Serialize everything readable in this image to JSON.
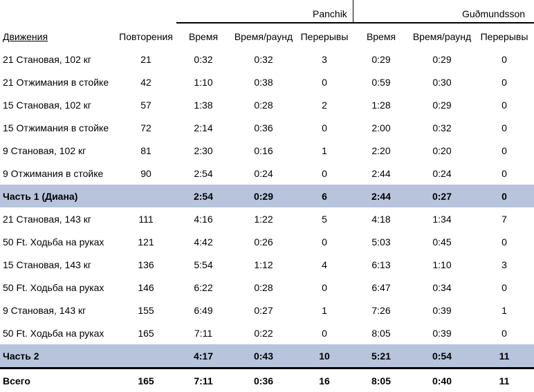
{
  "athletes": [
    "Panchik",
    "Guðmundsson"
  ],
  "columns": [
    "Движения",
    "Повторения",
    "Время",
    "Время/раунд",
    "Перерывы",
    "Время",
    "Время/раунд",
    "Перерывы"
  ],
  "rows": [
    {
      "type": "data",
      "cells": [
        "21 Становая, 102 кг",
        "21",
        "0:32",
        "0:32",
        "3",
        "0:29",
        "0:29",
        "0"
      ]
    },
    {
      "type": "data",
      "cells": [
        "21 Отжимания в стойке",
        "42",
        "1:10",
        "0:38",
        "0",
        "0:59",
        "0:30",
        "0"
      ]
    },
    {
      "type": "data",
      "cells": [
        "15 Становая, 102 кг",
        "57",
        "1:38",
        "0:28",
        "2",
        "1:28",
        "0:29",
        "0"
      ]
    },
    {
      "type": "data",
      "cells": [
        "15 Отжимания в стойке",
        "72",
        "2:14",
        "0:36",
        "0",
        "2:00",
        "0:32",
        "0"
      ]
    },
    {
      "type": "data",
      "cells": [
        "9 Становая, 102 кг",
        "81",
        "2:30",
        "0:16",
        "1",
        "2:20",
        "0:20",
        "0"
      ]
    },
    {
      "type": "data",
      "cells": [
        "9 Отжимания в стойке",
        "90",
        "2:54",
        "0:24",
        "0",
        "2:44",
        "0:24",
        "0"
      ]
    },
    {
      "type": "subtotal",
      "cells": [
        "Часть 1 (Диана)",
        "",
        "2:54",
        "0:29",
        "6",
        "2:44",
        "0:27",
        "0"
      ]
    },
    {
      "type": "data",
      "cells": [
        "21 Становая, 143 кг",
        "111",
        "4:16",
        "1:22",
        "5",
        "4:18",
        "1:34",
        "7"
      ]
    },
    {
      "type": "data",
      "cells": [
        "50 Ft. Ходьба на руках",
        "121",
        "4:42",
        "0:26",
        "0",
        "5:03",
        "0:45",
        "0"
      ]
    },
    {
      "type": "data",
      "cells": [
        "15 Становая, 143 кг",
        "136",
        "5:54",
        "1:12",
        "4",
        "6:13",
        "1:10",
        "3"
      ]
    },
    {
      "type": "data",
      "cells": [
        "50 Ft. Ходьба на руках",
        "146",
        "6:22",
        "0:28",
        "0",
        "6:47",
        "0:34",
        "0"
      ]
    },
    {
      "type": "data",
      "cells": [
        "9 Становая, 143 кг",
        "155",
        "6:49",
        "0:27",
        "1",
        "7:26",
        "0:39",
        "1"
      ]
    },
    {
      "type": "data",
      "cells": [
        "50 Ft. Ходьба на руках",
        "165",
        "7:11",
        "0:22",
        "0",
        "8:05",
        "0:39",
        "0"
      ]
    },
    {
      "type": "subtotal",
      "cells": [
        "Часть 2",
        "",
        "4:17",
        "0:43",
        "10",
        "5:21",
        "0:54",
        "11"
      ]
    },
    {
      "type": "total",
      "cells": [
        "Всего",
        "165",
        "7:11",
        "0:36",
        "16",
        "8:05",
        "0:40",
        "11"
      ]
    }
  ]
}
